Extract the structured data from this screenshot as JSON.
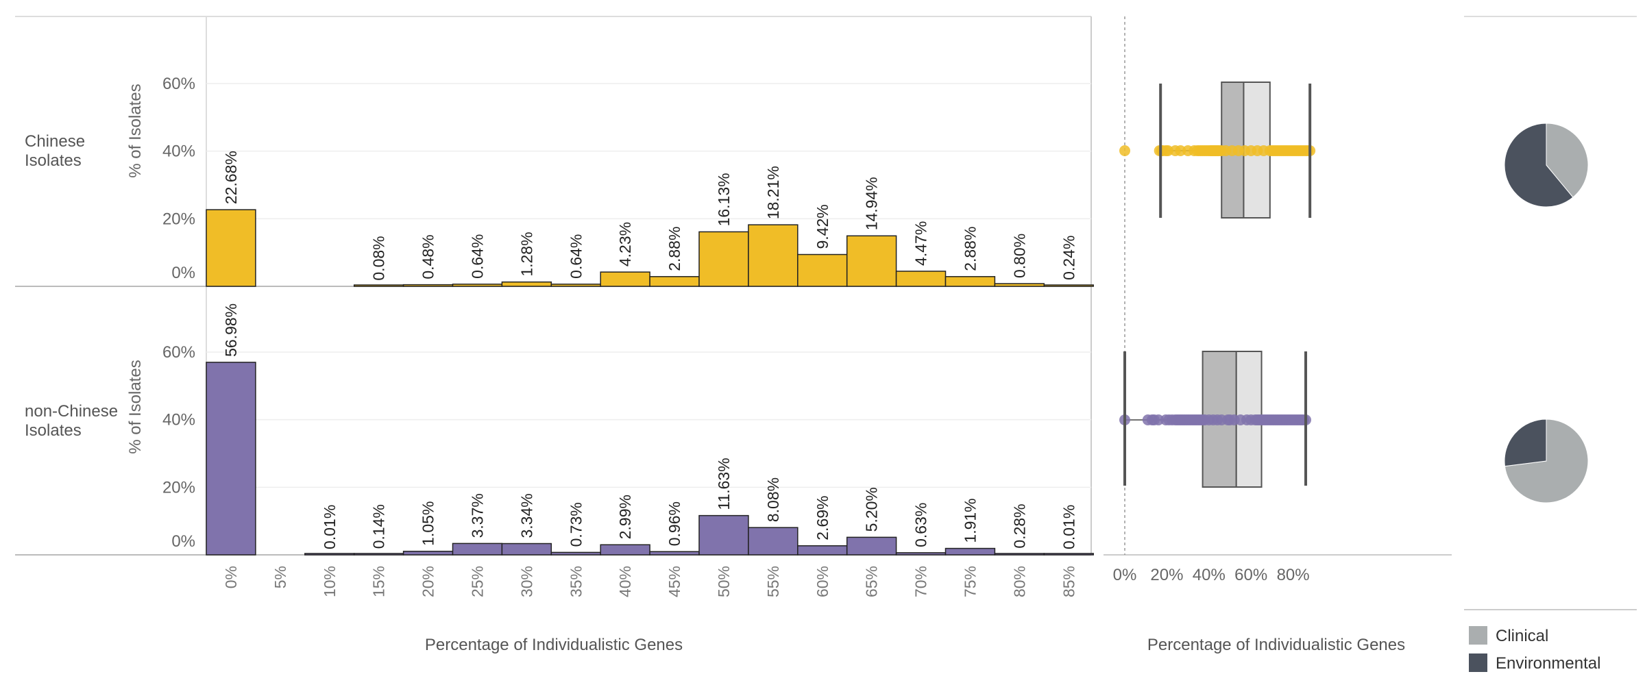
{
  "chart_data": [
    {
      "type": "bar",
      "kind": "histogram",
      "xlabel": "Percentage of Individualistic Genes",
      "ylabel": "% of Isolates",
      "x_tick_labels": [
        "0%",
        "5%",
        "10%",
        "15%",
        "20%",
        "25%",
        "30%",
        "35%",
        "40%",
        "45%",
        "50%",
        "55%",
        "60%",
        "65%",
        "70%",
        "75%",
        "80%",
        "85%"
      ],
      "y_tick_labels": [
        "0%",
        "20%",
        "40%",
        "60%"
      ],
      "ylim": [
        0,
        80
      ],
      "grid": true,
      "rows": [
        {
          "label": "Chinese Isolates",
          "color": "#F0BD27",
          "bins": [
            0,
            5,
            10,
            15,
            20,
            25,
            30,
            35,
            40,
            45,
            50,
            55,
            60,
            65,
            70,
            75,
            80,
            85
          ],
          "values": [
            22.68,
            null,
            null,
            0.08,
            0.48,
            0.64,
            1.28,
            0.64,
            4.23,
            2.88,
            16.13,
            18.21,
            9.42,
            14.94,
            4.47,
            2.88,
            0.8,
            0.24
          ],
          "value_labels": [
            "22.68%",
            "",
            "",
            "0.08%",
            "0.48%",
            "0.64%",
            "1.28%",
            "0.64%",
            "4.23%",
            "2.88%",
            "16.13%",
            "18.21%",
            "9.42%",
            "14.94%",
            "4.47%",
            "2.88%",
            "0.80%",
            "0.24%"
          ]
        },
        {
          "label": "non-Chinese Isolates",
          "color": "#8073AC",
          "bins": [
            0,
            5,
            10,
            15,
            20,
            25,
            30,
            35,
            40,
            45,
            50,
            55,
            60,
            65,
            70,
            75,
            80,
            85
          ],
          "values": [
            56.98,
            null,
            0.01,
            0.14,
            1.05,
            3.37,
            3.34,
            0.73,
            2.99,
            0.96,
            11.63,
            8.08,
            2.69,
            5.2,
            0.63,
            1.91,
            0.28,
            0.01
          ],
          "value_labels": [
            "56.98%",
            "",
            "0.01%",
            "0.14%",
            "1.05%",
            "3.37%",
            "3.34%",
            "0.73%",
            "2.99%",
            "0.96%",
            "11.63%",
            "8.08%",
            "2.69%",
            "5.20%",
            "0.63%",
            "1.91%",
            "0.28%",
            "0.01%"
          ]
        }
      ]
    },
    {
      "type": "scatter",
      "kind": "boxplot-with-points",
      "xlabel": "Percentage of Individualistic Genes",
      "x_tick_labels": [
        "0%",
        "20%",
        "40%",
        "60%",
        "80%"
      ],
      "xlim": [
        -5,
        95
      ],
      "series": [
        {
          "row": "Chinese Isolates",
          "color": "#F0BD27",
          "whisker_low": 17,
          "q1": 46,
          "median": 56.5,
          "q3": 69,
          "whisker_high": 88,
          "points": [
            0,
            16.5,
            17.5,
            18,
            19.5,
            20.5,
            24,
            26.5,
            30,
            33,
            34.5,
            35.5,
            36.5,
            37.5,
            38.5,
            39.5,
            40.5,
            41,
            41.5,
            42,
            42.5,
            43,
            43.5,
            44,
            44.5,
            45,
            46,
            48,
            51,
            54,
            57,
            60,
            63,
            66,
            69,
            70,
            71,
            72,
            73,
            74,
            75,
            76,
            77,
            78,
            79,
            80,
            81,
            82,
            83,
            84,
            85,
            86,
            87,
            88
          ]
        },
        {
          "row": "non-Chinese Isolates",
          "color": "#8073AC",
          "whisker_low": 0,
          "q1": 37,
          "median": 53,
          "q3": 65,
          "whisker_high": 86,
          "points": [
            0,
            11,
            13,
            14,
            16,
            19.5,
            21,
            22.5,
            24,
            25,
            26,
            27,
            28,
            29,
            30,
            31,
            32,
            33,
            34,
            35,
            36,
            37,
            38,
            40,
            42,
            44,
            46,
            49,
            50,
            52,
            55,
            58,
            60,
            62,
            63,
            64,
            65,
            66,
            67,
            68,
            69,
            70,
            71,
            72,
            73,
            74,
            75,
            76,
            77,
            78,
            79,
            80,
            81,
            82,
            83,
            84,
            85,
            86
          ]
        }
      ]
    },
    {
      "type": "pie",
      "rows": [
        "Chinese Isolates",
        "non-Chinese Isolates"
      ],
      "categories": [
        "Clinical",
        "Environmental"
      ],
      "colors": [
        "#AAAEAF",
        "#4B525E"
      ],
      "series": [
        {
          "row": "Chinese Isolates",
          "values": [
            39,
            61
          ]
        },
        {
          "row": "non-Chinese Isolates",
          "values": [
            73,
            27
          ]
        }
      ],
      "legend": {
        "position": "bottom-right",
        "entries": [
          "Clinical",
          "Environmental"
        ]
      }
    }
  ]
}
